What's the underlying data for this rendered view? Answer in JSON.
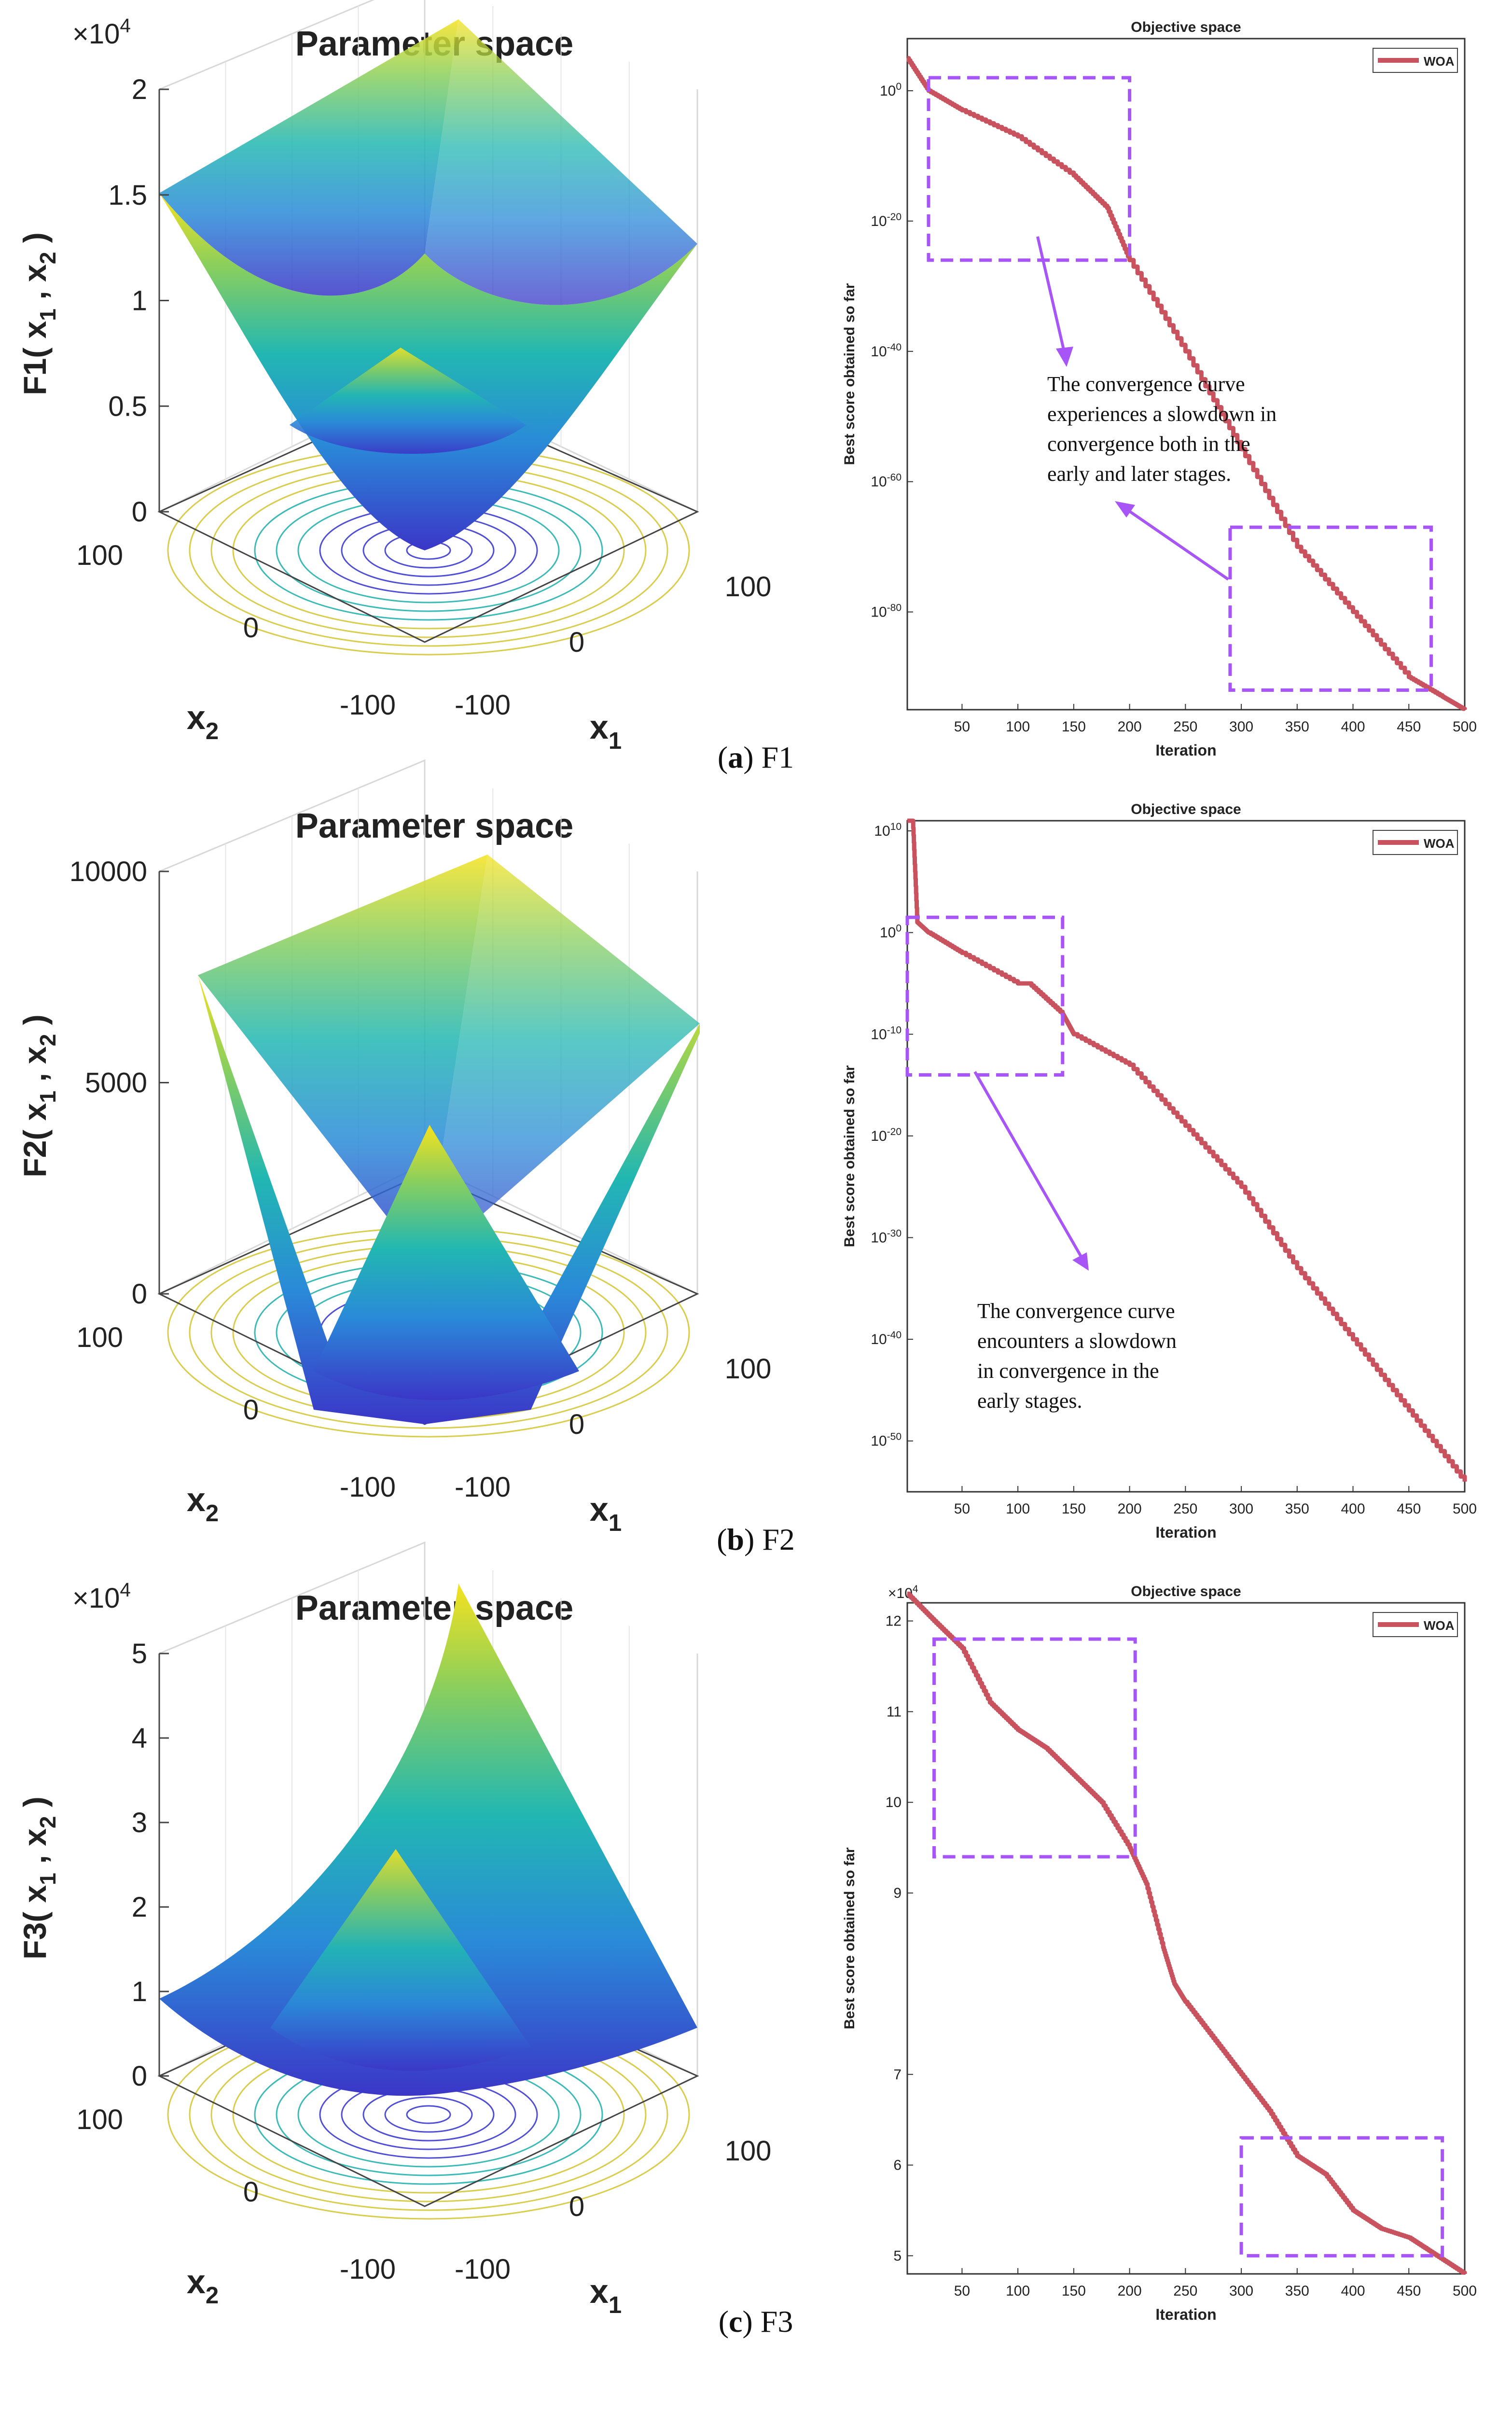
{
  "panels": [
    {
      "id": "a",
      "caption": {
        "letter": "a",
        "name": "F1"
      },
      "surface": {
        "title": "Parameter space",
        "zlabel": "F1( x_1 , x_2 )",
        "xlabel": "x_1",
        "ylabel": "x_2",
        "zexponent": "×10^4",
        "zticks": [
          "0",
          "0.5",
          "1",
          "1.5",
          "2"
        ],
        "xticks": [
          "-100",
          "0",
          "100"
        ],
        "yticks": [
          "-100",
          "0",
          "100"
        ]
      },
      "convergence": {
        "title": "Objective space",
        "xlabel": "Iteration",
        "ylabel": "Best score obtained so far",
        "legend": "WOA",
        "yscale": "log",
        "xticks": [
          "50",
          "100",
          "150",
          "200",
          "250",
          "300",
          "350",
          "400",
          "450",
          "500"
        ],
        "yticks": [
          "10^0",
          "10^-20",
          "10^-40",
          "10^-60",
          "10^-80"
        ],
        "annotation": [
          "The convergence curve",
          "experiences a slowdown in",
          "convergence both in the",
          "early and later stages."
        ]
      }
    },
    {
      "id": "b",
      "caption": {
        "letter": "b",
        "name": "F2"
      },
      "surface": {
        "title": "Parameter space",
        "zlabel": "F2( x_1 , x_2 )",
        "xlabel": "x_1",
        "ylabel": "x_2",
        "zexponent": "",
        "zticks": [
          "0",
          "5000",
          "10000"
        ],
        "xticks": [
          "-100",
          "0",
          "100"
        ],
        "yticks": [
          "-100",
          "0",
          "100"
        ]
      },
      "convergence": {
        "title": "Objective space",
        "xlabel": "Iteration",
        "ylabel": "Best score obtained so far",
        "legend": "WOA",
        "yscale": "log",
        "xticks": [
          "50",
          "100",
          "150",
          "200",
          "250",
          "300",
          "350",
          "400",
          "450",
          "500"
        ],
        "yticks": [
          "10^10",
          "10^0",
          "10^-10",
          "10^-20",
          "10^-30",
          "10^-40",
          "10^-50"
        ],
        "annotation": [
          "The convergence curve",
          "encounters a slowdown",
          "in convergence in the",
          "early stages."
        ]
      }
    },
    {
      "id": "c",
      "caption": {
        "letter": "c",
        "name": "F3"
      },
      "surface": {
        "title": "Parameter space",
        "zlabel": "F3( x_1 , x_2 )",
        "xlabel": "x_1",
        "ylabel": "x_2",
        "zexponent": "×10^4",
        "zticks": [
          "0",
          "1",
          "2",
          "3",
          "4",
          "5"
        ],
        "xticks": [
          "-100",
          "0",
          "100"
        ],
        "yticks": [
          "-100",
          "0",
          "100"
        ]
      },
      "convergence": {
        "title": "Objective space",
        "xlabel": "Iteration",
        "ylabel": "Best score obtained so far",
        "legend": "WOA",
        "yscale": "linear",
        "yexponent": "×10^4",
        "xticks": [
          "50",
          "100",
          "150",
          "200",
          "250",
          "300",
          "350",
          "400",
          "450",
          "500"
        ],
        "yticks": [
          "12",
          "11",
          "10",
          "9",
          "7",
          "6",
          "5"
        ],
        "annotation": []
      }
    }
  ],
  "chart_data": [
    {
      "type": "line",
      "title": "Objective space",
      "function": "F1",
      "xlabel": "Iteration",
      "ylabel": "Best score obtained so far",
      "yscale": "log",
      "xlim": [
        1,
        500
      ],
      "ylim_exponent": [
        -95,
        8
      ],
      "series": [
        {
          "name": "WOA",
          "color": "#c8535e",
          "x": [
            1,
            20,
            50,
            100,
            150,
            180,
            200,
            250,
            300,
            350,
            400,
            450,
            480,
            500
          ],
          "log10_y": [
            5,
            0,
            -3,
            -7,
            -13,
            -18,
            -26,
            -40,
            -55,
            -70,
            -80,
            -90,
            -93,
            -95
          ]
        }
      ],
      "highlight_boxes": [
        {
          "x": [
            20,
            200
          ],
          "log10_y": [
            -26,
            2
          ]
        },
        {
          "x": [
            290,
            470
          ],
          "log10_y": [
            -92,
            -67
          ]
        }
      ]
    },
    {
      "type": "line",
      "title": "Objective space",
      "function": "F2",
      "xlabel": "Iteration",
      "ylabel": "Best score obtained so far",
      "yscale": "log",
      "xlim": [
        1,
        500
      ],
      "ylim_exponent": [
        -55,
        11
      ],
      "series": [
        {
          "name": "WOA",
          "color": "#c8535e",
          "x": [
            1,
            6,
            10,
            20,
            50,
            100,
            110,
            140,
            150,
            200,
            250,
            300,
            350,
            400,
            450,
            500
          ],
          "log10_y": [
            11,
            11,
            1,
            0,
            -2,
            -5,
            -5,
            -8,
            -10,
            -13,
            -19,
            -25,
            -33,
            -40,
            -47,
            -54
          ]
        }
      ],
      "highlight_boxes": [
        {
          "x": [
            1,
            140
          ],
          "log10_y": [
            -14,
            1.5
          ]
        }
      ]
    },
    {
      "type": "line",
      "title": "Objective space",
      "function": "F3",
      "xlabel": "Iteration",
      "ylabel": "Best score obtained so far",
      "yscale": "linear",
      "xlim": [
        1,
        500
      ],
      "ylim": [
        48000,
        122000
      ],
      "series": [
        {
          "name": "WOA",
          "color": "#c8535e",
          "x": [
            1,
            25,
            50,
            75,
            100,
            125,
            150,
            175,
            200,
            215,
            230,
            240,
            250,
            275,
            300,
            325,
            350,
            375,
            400,
            425,
            450,
            475,
            500
          ],
          "y": [
            123000,
            120000,
            117000,
            111000,
            108000,
            106000,
            103000,
            100000,
            95000,
            91000,
            84000,
            80000,
            78000,
            74000,
            70000,
            66000,
            61000,
            59000,
            55000,
            53000,
            52000,
            50000,
            48000
          ]
        }
      ],
      "highlight_boxes": [
        {
          "x": [
            25,
            205
          ],
          "y": [
            94000,
            118000
          ]
        },
        {
          "x": [
            300,
            480
          ],
          "y": [
            50000,
            63000
          ]
        }
      ]
    }
  ]
}
